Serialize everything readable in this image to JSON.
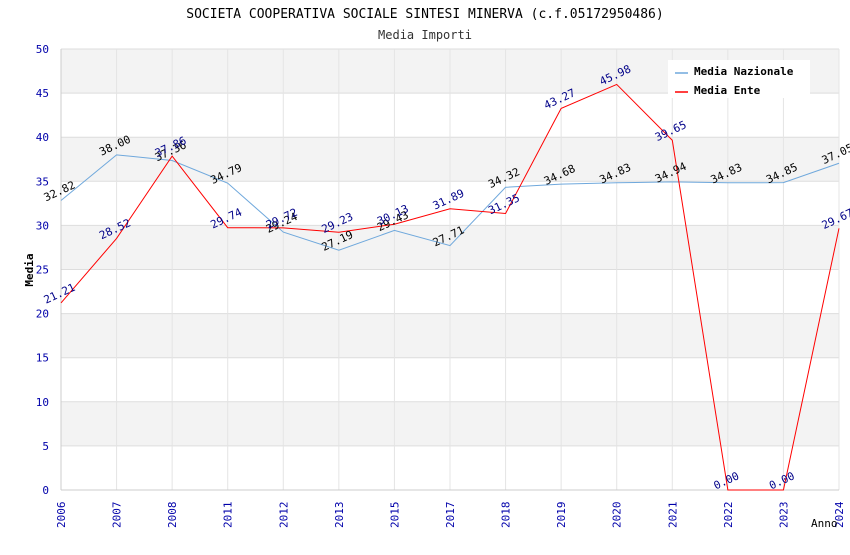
{
  "title": "SOCIETA COOPERATIVA SOCIALE SINTESI MINERVA (c.f.05172950486)",
  "subtitle": "Media Importi",
  "chart_data": {
    "type": "line",
    "title": "SOCIETA COOPERATIVA SOCIALE SINTESI MINERVA (c.f.05172950486)",
    "subtitle": "Media Importi",
    "xlabel": "Anno",
    "ylabel": "Media",
    "ylim": [
      0,
      50
    ],
    "yticks": [
      "0",
      "5",
      "10",
      "15",
      "20",
      "25",
      "30",
      "35",
      "40",
      "45",
      "50"
    ],
    "categories": [
      "2006",
      "2007",
      "2008",
      "2011",
      "2012",
      "2013",
      "2015",
      "2017",
      "2018",
      "2019",
      "2020",
      "2021",
      "2022",
      "2023",
      "2024"
    ],
    "grid": true,
    "legend_position": "top-right",
    "series": [
      {
        "name": "Media Nazionale",
        "color": "#6fa8dc",
        "values": [
          32.82,
          38.0,
          37.36,
          34.79,
          29.24,
          27.19,
          29.43,
          27.71,
          34.32,
          34.68,
          34.83,
          34.94,
          34.83,
          34.85,
          37.05
        ],
        "labels": [
          "32.82",
          "38.00",
          "37.36",
          "34.79",
          "29.24",
          "27.19",
          "29.43",
          "27.71",
          "34.32",
          "34.68",
          "34.83",
          "34.94",
          "34.83",
          "34.85",
          "37.05"
        ]
      },
      {
        "name": "Media Ente",
        "color": "#ff0000",
        "values": [
          21.21,
          28.52,
          37.86,
          29.74,
          29.72,
          29.23,
          30.13,
          31.89,
          31.35,
          43.27,
          45.98,
          39.65,
          0.0,
          0.0,
          29.67
        ],
        "labels": [
          "21.21",
          "28.52",
          "37.86",
          "29.74",
          "29.72",
          "29.23",
          "30.13",
          "31.89",
          "31.35",
          "43.27",
          "45.98",
          "39.65",
          "0.00",
          "0.00",
          "29.67"
        ]
      }
    ]
  }
}
